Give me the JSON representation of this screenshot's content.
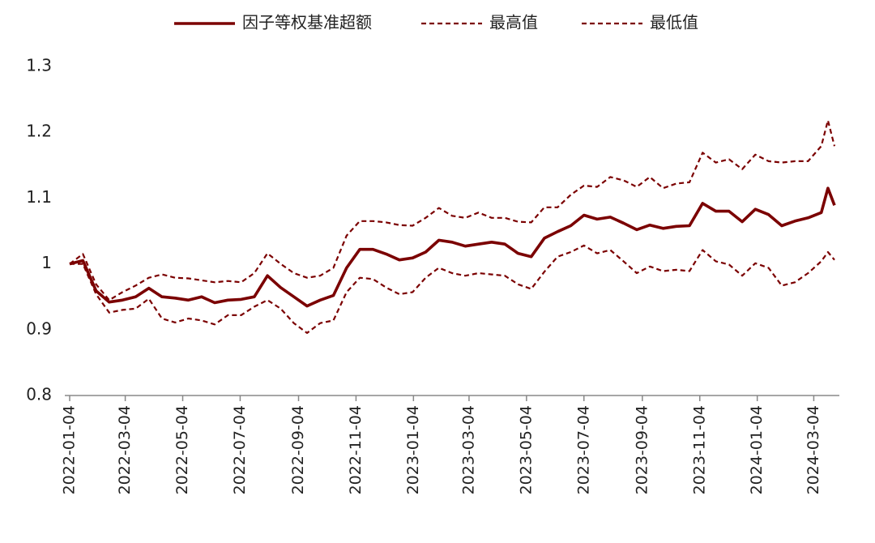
{
  "chart_data": {
    "type": "line",
    "x": [
      "2022-01-04",
      "2022-01-18",
      "2022-02-01",
      "2022-02-15",
      "2022-03-01",
      "2022-03-15",
      "2022-03-29",
      "2022-04-12",
      "2022-04-26",
      "2022-05-10",
      "2022-05-24",
      "2022-06-07",
      "2022-06-21",
      "2022-07-05",
      "2022-07-19",
      "2022-08-02",
      "2022-08-16",
      "2022-08-30",
      "2022-09-13",
      "2022-09-27",
      "2022-10-11",
      "2022-10-25",
      "2022-11-08",
      "2022-11-22",
      "2022-12-06",
      "2022-12-20",
      "2023-01-03",
      "2023-01-17",
      "2023-01-31",
      "2023-02-14",
      "2023-02-28",
      "2023-03-14",
      "2023-03-28",
      "2023-04-11",
      "2023-04-25",
      "2023-05-09",
      "2023-05-23",
      "2023-06-06",
      "2023-06-20",
      "2023-07-04",
      "2023-07-18",
      "2023-08-01",
      "2023-08-15",
      "2023-08-29",
      "2023-09-12",
      "2023-09-26",
      "2023-10-10",
      "2023-10-24",
      "2023-11-07",
      "2023-11-21",
      "2023-12-05",
      "2023-12-19",
      "2024-01-02",
      "2024-01-16",
      "2024-01-30",
      "2024-02-13",
      "2024-02-27",
      "2024-03-12",
      "2024-03-19",
      "2024-03-26"
    ],
    "series": [
      {
        "name": "因子等权基准超额",
        "color": "#7b0000",
        "style": "solid",
        "values": [
          1.0,
          1.005,
          0.959,
          0.942,
          0.945,
          0.95,
          0.963,
          0.95,
          0.948,
          0.945,
          0.95,
          0.941,
          0.945,
          0.946,
          0.95,
          0.982,
          0.964,
          0.95,
          0.936,
          0.945,
          0.952,
          0.994,
          1.022,
          1.022,
          1.015,
          1.006,
          1.009,
          1.018,
          1.036,
          1.033,
          1.027,
          1.03,
          1.033,
          1.03,
          1.016,
          1.011,
          1.039,
          1.049,
          1.058,
          1.074,
          1.068,
          1.071,
          1.062,
          1.052,
          1.059,
          1.054,
          1.057,
          1.058,
          1.092,
          1.08,
          1.08,
          1.064,
          1.083,
          1.075,
          1.058,
          1.065,
          1.07,
          1.078,
          1.115,
          1.089
        ]
      },
      {
        "name": "最高值",
        "color": "#7b0000",
        "style": "dashed",
        "values": [
          1.0,
          1.015,
          0.969,
          0.945,
          0.957,
          0.967,
          0.979,
          0.984,
          0.979,
          0.978,
          0.975,
          0.972,
          0.974,
          0.972,
          0.986,
          1.016,
          1.0,
          0.986,
          0.979,
          0.982,
          0.994,
          1.043,
          1.065,
          1.065,
          1.063,
          1.059,
          1.058,
          1.07,
          1.085,
          1.073,
          1.07,
          1.078,
          1.07,
          1.07,
          1.064,
          1.063,
          1.086,
          1.086,
          1.105,
          1.119,
          1.117,
          1.132,
          1.127,
          1.117,
          1.132,
          1.115,
          1.122,
          1.124,
          1.169,
          1.154,
          1.159,
          1.144,
          1.166,
          1.156,
          1.154,
          1.156,
          1.156,
          1.179,
          1.218,
          1.179
        ]
      },
      {
        "name": "最低值",
        "color": "#7b0000",
        "style": "dashed",
        "values": [
          1.0,
          1.0,
          0.954,
          0.926,
          0.93,
          0.932,
          0.947,
          0.917,
          0.911,
          0.917,
          0.914,
          0.908,
          0.922,
          0.922,
          0.935,
          0.945,
          0.932,
          0.91,
          0.895,
          0.91,
          0.914,
          0.957,
          0.979,
          0.977,
          0.964,
          0.954,
          0.957,
          0.979,
          0.994,
          0.986,
          0.982,
          0.986,
          0.984,
          0.982,
          0.969,
          0.962,
          0.988,
          1.011,
          1.018,
          1.028,
          1.016,
          1.021,
          1.004,
          0.986,
          0.996,
          0.989,
          0.991,
          0.989,
          1.021,
          1.004,
          0.999,
          0.982,
          1.001,
          0.994,
          0.967,
          0.972,
          0.986,
          1.004,
          1.018,
          1.006
        ]
      }
    ],
    "xlim": [
      "2022-01-04",
      "2024-03-26"
    ],
    "xticks": [
      "2022-01-04",
      "2022-03-04",
      "2022-05-04",
      "2022-07-04",
      "2022-09-04",
      "2022-11-04",
      "2023-01-04",
      "2023-03-04",
      "2023-05-04",
      "2023-07-04",
      "2023-09-04",
      "2023-11-04",
      "2024-01-04",
      "2024-03-04"
    ],
    "ylim": [
      0.8,
      1.3
    ],
    "yticks": [
      0.8,
      0.9,
      1,
      1.1,
      1.2,
      1.3
    ],
    "grid": false,
    "legend": "top"
  }
}
